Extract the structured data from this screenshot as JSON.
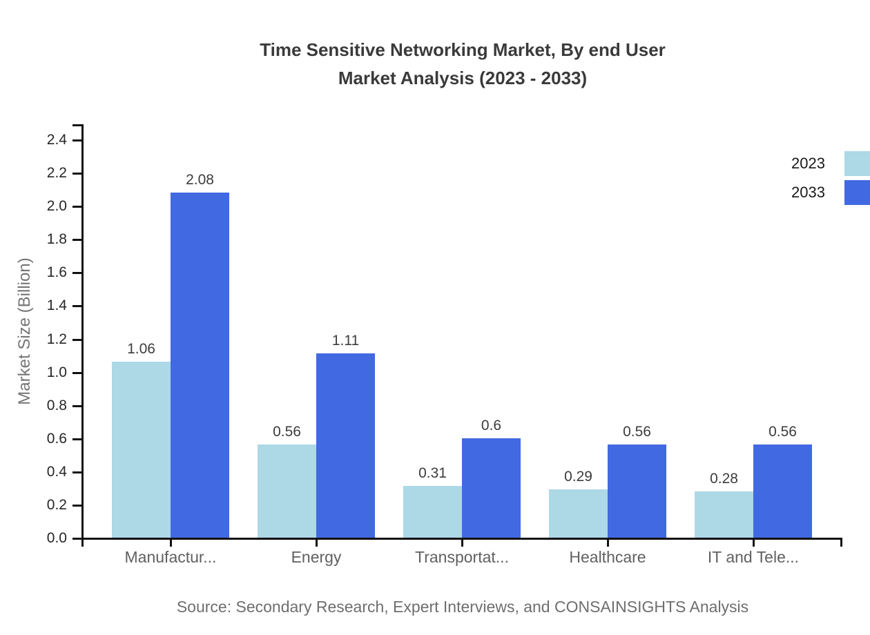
{
  "title": {
    "line1": "Time Sensitive Networking Market, By end User",
    "line2": "Market Analysis (2023 - 2033)"
  },
  "legend": [
    {
      "label": "2023",
      "color": "#ADD8E6"
    },
    {
      "label": "2033",
      "color": "#4169E1"
    }
  ],
  "chart_data": {
    "type": "bar",
    "categories": [
      "Manufactur...",
      "Energy",
      "Transportat...",
      "Healthcare",
      "IT and Tele..."
    ],
    "series": [
      {
        "name": "2023",
        "color": "#ADD8E6",
        "values": [
          1.06,
          0.56,
          0.31,
          0.29,
          0.28
        ]
      },
      {
        "name": "2033",
        "color": "#4169E1",
        "values": [
          2.08,
          1.11,
          0.6,
          0.56,
          0.56
        ]
      }
    ],
    "title": "Time Sensitive Networking Market, By end User Market Analysis (2023 - 2033)",
    "xlabel": "",
    "ylabel": "Market Size (Billion)",
    "ylim": [
      0,
      2.5
    ],
    "yticks": [
      0.0,
      0.2,
      0.4,
      0.6,
      0.8,
      1.0,
      1.2,
      1.4,
      1.6,
      1.8,
      2.0,
      2.2,
      2.4
    ],
    "grid": false,
    "legend_position": "top-right",
    "axis_color": "#111111"
  },
  "source": "Source: Secondary Research, Expert Interviews, and CONSAINSIGHTS Analysis"
}
